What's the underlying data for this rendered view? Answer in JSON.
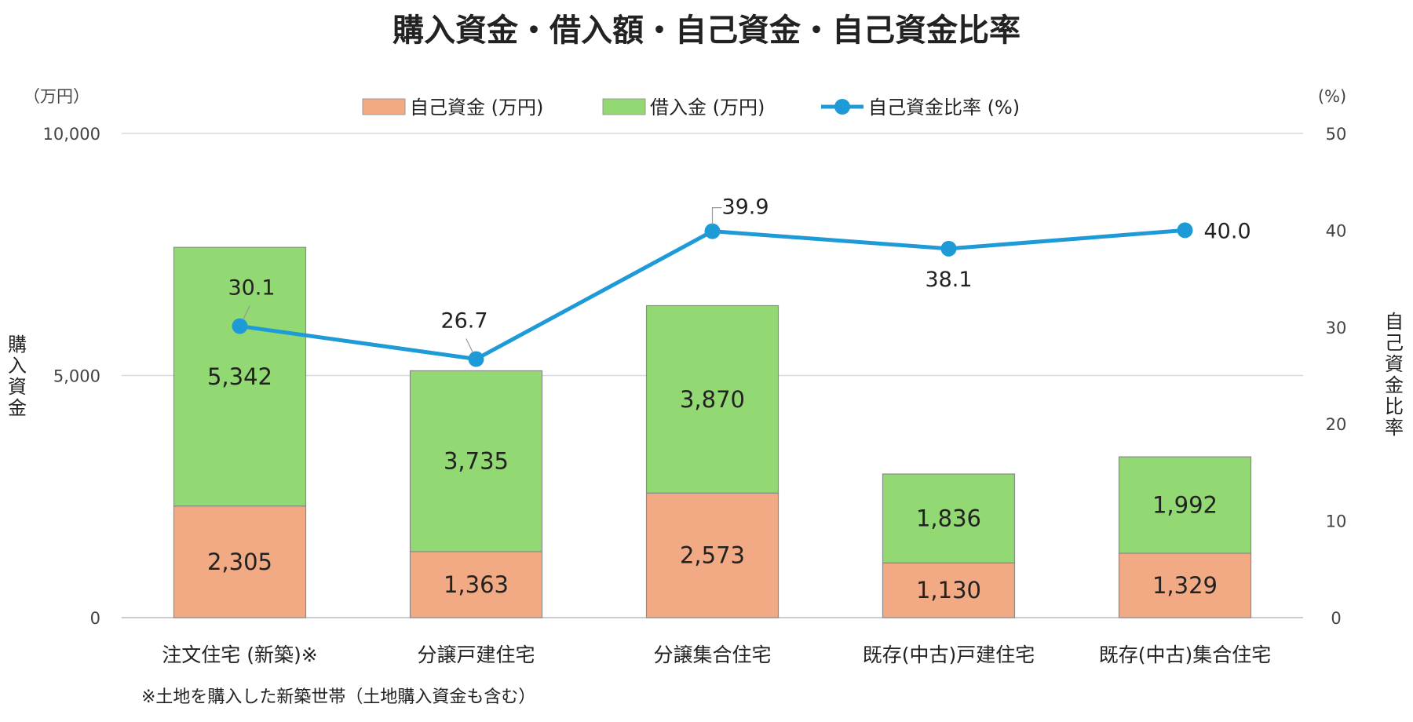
{
  "chart_data": {
    "type": "bar",
    "stacked": true,
    "title": "購入資金・借入額・自己資金・自己資金比率",
    "footnote": "※土地を購入した新築世帯（土地購入資金も含む）",
    "left_axis": {
      "unit": "（万円）",
      "label": "購入資金",
      "ylim": [
        0,
        10000
      ],
      "ticks": [
        "0",
        "5,000",
        "10,000"
      ]
    },
    "right_axis": {
      "unit": "(%)",
      "label": "自己資金比率",
      "ylim": [
        0,
        50
      ],
      "ticks": [
        "0",
        "10",
        "20",
        "30",
        "40",
        "50"
      ]
    },
    "categories": [
      "注文住宅 (新築)※",
      "分譲戸建住宅",
      "分譲集合住宅",
      "既存(中古)戸建住宅",
      "既存(中古)集合住宅"
    ],
    "series": [
      {
        "name": "自己資金 (万円)",
        "kind": "bar",
        "color": "#f2aa84",
        "values": [
          2305,
          1363,
          2573,
          1130,
          1329
        ],
        "labels": [
          "2,305",
          "1,363",
          "2,573",
          "1,130",
          "1,329"
        ]
      },
      {
        "name": "借入金 (万円)",
        "kind": "bar",
        "color": "#92d873",
        "values": [
          5342,
          3735,
          3870,
          1836,
          1992
        ],
        "labels": [
          "5,342",
          "3,735",
          "3,870",
          "1,836",
          "1,992"
        ]
      },
      {
        "name": "自己資金比率 (%)",
        "kind": "line",
        "axis": "right",
        "color": "#1e9bd7",
        "values": [
          30.1,
          26.7,
          39.9,
          38.1,
          40.0
        ],
        "labels": [
          "30.1",
          "26.7",
          "39.9",
          "38.1",
          "40.0"
        ]
      }
    ],
    "grid": true,
    "legend_position": "top"
  }
}
